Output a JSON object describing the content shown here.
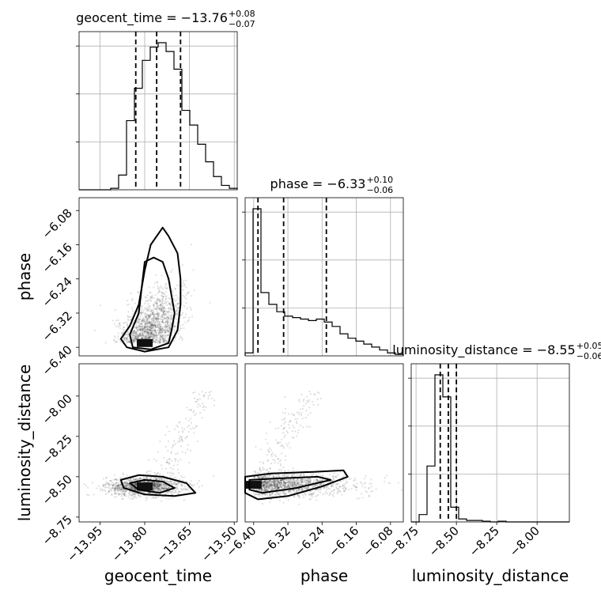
{
  "chart_data": {
    "type": "scatter",
    "parameters": [
      {
        "name": "geocent_time",
        "axis_label": "geocent_time",
        "range": [
          -14.02,
          -13.49
        ],
        "ticks": [
          -13.95,
          -13.8,
          -13.65,
          -13.5
        ],
        "tick_labels": [
          "−13.95",
          "−13.80",
          "−13.65",
          "−13.50"
        ],
        "median": -13.76,
        "q_low": -13.83,
        "q_high": -13.68,
        "title_main": "geocent_time = −13.76",
        "title_sup": "+0.08",
        "title_sub": "−0.07",
        "hist_counts": [
          0,
          0,
          0,
          0,
          1,
          10,
          47,
          69,
          88,
          97,
          100,
          94,
          82,
          54,
          44,
          31,
          19,
          9,
          3,
          1
        ]
      },
      {
        "name": "phase",
        "axis_label": "phase",
        "range": [
          -6.42,
          -6.05
        ],
        "ticks": [
          -6.4,
          -6.32,
          -6.24,
          -6.16,
          -6.08
        ],
        "tick_labels": [
          "−6.40",
          "−6.32",
          "−6.24",
          "−6.16",
          "−6.08"
        ],
        "median": -6.33,
        "q_low": -6.39,
        "q_high": -6.23,
        "title_main": "phase = −6.33",
        "title_sup": "+0.10",
        "title_sub": "−0.06",
        "hist_counts": [
          2,
          100,
          43,
          35,
          30,
          27,
          26,
          25,
          24,
          25,
          23,
          20,
          15,
          12,
          10,
          8,
          6,
          4,
          2,
          1
        ]
      },
      {
        "name": "luminosity_distance",
        "axis_label": "luminosity_distance",
        "range": [
          -8.78,
          -7.8
        ],
        "ticks": [
          -8.75,
          -8.5,
          -8.25,
          -8.0
        ],
        "tick_labels": [
          "−8.75",
          "−8.50",
          "−8.25",
          "−8.00"
        ],
        "median": -8.55,
        "q_low": -8.6,
        "q_high": -8.5,
        "title_main": "luminosity_distance = −8.55",
        "title_sup": "+0.05",
        "title_sub": "−0.06",
        "hist_counts": [
          0,
          5,
          38,
          100,
          85,
          10,
          2,
          1,
          1,
          0.5,
          0,
          0.5,
          0,
          0,
          0,
          0,
          0,
          0,
          0,
          0
        ]
      }
    ],
    "pairs": [
      {
        "x": "geocent_time",
        "y": "phase",
        "core": [
          -13.8,
          -6.39
        ],
        "contours": [
          [
            [
              -13.84,
              -6.4
            ],
            [
              -13.78,
              -6.405
            ],
            [
              -13.72,
              -6.39
            ],
            [
              -13.71,
              -6.36
            ],
            [
              -13.7,
              -6.32
            ],
            [
              -13.71,
              -6.28
            ],
            [
              -13.72,
              -6.24
            ],
            [
              -13.74,
              -6.2
            ],
            [
              -13.77,
              -6.19
            ],
            [
              -13.8,
              -6.2
            ],
            [
              -13.81,
              -6.26
            ],
            [
              -13.82,
              -6.32
            ],
            [
              -13.85,
              -6.37
            ]
          ],
          [
            [
              -13.86,
              -6.4
            ],
            [
              -13.8,
              -6.41
            ],
            [
              -13.72,
              -6.4
            ],
            [
              -13.69,
              -6.36
            ],
            [
              -13.68,
              -6.3
            ],
            [
              -13.68,
              -6.24
            ],
            [
              -13.69,
              -6.18
            ],
            [
              -13.72,
              -6.14
            ],
            [
              -13.74,
              -6.12
            ],
            [
              -13.78,
              -6.16
            ],
            [
              -13.8,
              -6.22
            ],
            [
              -13.82,
              -6.3
            ],
            [
              -13.85,
              -6.35
            ],
            [
              -13.88,
              -6.38
            ]
          ]
        ]
      },
      {
        "x": "geocent_time",
        "y": "luminosity_distance",
        "core": [
          -13.8,
          -8.56
        ],
        "contours": [
          [
            [
              -13.85,
              -8.54
            ],
            [
              -13.8,
              -8.52
            ],
            [
              -13.74,
              -8.53
            ],
            [
              -13.7,
              -8.57
            ],
            [
              -13.75,
              -8.6
            ],
            [
              -13.82,
              -8.58
            ]
          ],
          [
            [
              -13.88,
              -8.52
            ],
            [
              -13.82,
              -8.49
            ],
            [
              -13.74,
              -8.5
            ],
            [
              -13.66,
              -8.54
            ],
            [
              -13.63,
              -8.6
            ],
            [
              -13.7,
              -8.62
            ],
            [
              -13.8,
              -8.61
            ],
            [
              -13.87,
              -8.57
            ]
          ]
        ]
      },
      {
        "x": "phase",
        "y": "luminosity_distance",
        "core": [
          -6.4,
          -8.55
        ],
        "contours": [
          [
            [
              -6.41,
              -8.52
            ],
            [
              -6.34,
              -8.51
            ],
            [
              -6.25,
              -8.5
            ],
            [
              -6.22,
              -8.52
            ],
            [
              -6.3,
              -8.57
            ],
            [
              -6.38,
              -8.6
            ],
            [
              -6.41,
              -8.58
            ]
          ],
          [
            [
              -6.42,
              -8.5
            ],
            [
              -6.36,
              -8.48
            ],
            [
              -6.26,
              -8.47
            ],
            [
              -6.19,
              -8.46
            ],
            [
              -6.18,
              -8.5
            ],
            [
              -6.24,
              -8.56
            ],
            [
              -6.32,
              -8.62
            ],
            [
              -6.39,
              -8.64
            ],
            [
              -6.42,
              -8.6
            ]
          ]
        ]
      }
    ]
  }
}
